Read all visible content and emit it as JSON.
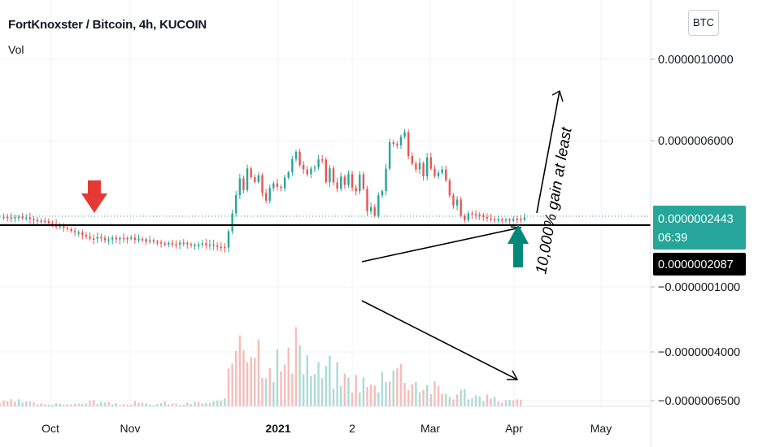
{
  "header": {
    "title": "FortKnoxster / Bitcoin, 4h, KUCOIN",
    "volume_label": "Vol"
  },
  "currency_button": "BTC",
  "colors": {
    "up": "#26a69a",
    "down": "#ef5350",
    "grid": "#f0f3fa",
    "label_current_bg": "#26a69a",
    "label_line_bg": "#000000",
    "red_arrow": "#e53935",
    "green_arrow": "#00897b"
  },
  "annotations": {
    "gain_text": "10,000% gain at least"
  },
  "chart_data": {
    "type": "line",
    "title": "FortKnoxster / Bitcoin, 4h, KUCOIN",
    "x_ticks": [
      "Oct",
      "Nov",
      "2021",
      "2",
      "Mar",
      "Apr",
      "May"
    ],
    "y_ticks": [
      "0.0000010000",
      "0.0000006000",
      "−0.0000001000",
      "−0.0000004000",
      "−0.0000006500"
    ],
    "ylim": [
      -6.6e-07,
      1.12e-06
    ],
    "current_price": "0.0000002443",
    "countdown": "06:39",
    "horizontal_line_price": "0.0000002087",
    "series": [
      {
        "values": [
          2.55,
          2.55,
          2.5,
          2.3,
          2.1,
          1.85,
          1.6,
          1.55,
          1.6,
          1.55,
          1.45,
          1.35,
          1.35,
          1.3,
          1.3,
          1.1,
          4.3,
          4.1,
          3.4,
          4.6,
          5.2,
          4.8,
          4.5,
          3.9,
          4.2,
          2.2,
          5.8,
          6.2,
          4.8,
          4.6,
          3.8,
          2.8,
          2.6,
          2.4,
          2.4,
          2.5
        ]
      }
    ],
    "volume_series": {
      "values": [
        2,
        3,
        2,
        1,
        2,
        1,
        3,
        2,
        1,
        2,
        1,
        2,
        1,
        2,
        2,
        3,
        50,
        35,
        28,
        22,
        32,
        18,
        20,
        15,
        14,
        10,
        25,
        18,
        12,
        10,
        6,
        8,
        5,
        4,
        3,
        3
      ]
    }
  }
}
